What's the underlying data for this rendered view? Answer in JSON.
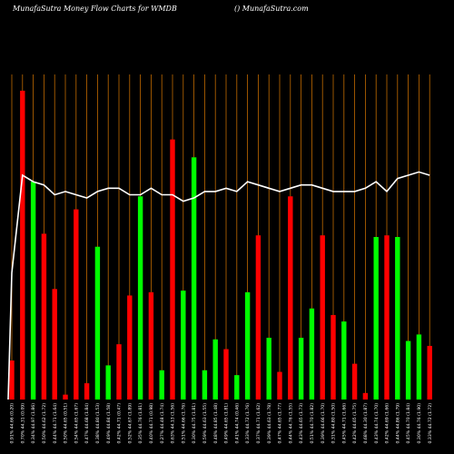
{
  "header": {
    "left": "MunafaSutra  Money Flow  Charts for WMDB",
    "right": "() MunafaSutra.com"
  },
  "colors": {
    "background": "#000000",
    "positive": "#00ff00",
    "negative": "#ff0000",
    "grid": "#c06a00",
    "line": "#ffffff"
  },
  "chart_data": {
    "type": "bar",
    "ylim": [
      0,
      100
    ],
    "bars": [
      {
        "label": "0.91% 44.66 (0.20)",
        "value": 12,
        "dir": "down"
      },
      {
        "label": "0.70% 44.31 (0.09)",
        "value": 95,
        "dir": "down"
      },
      {
        "label": "0.34% 44.97 (1.86)",
        "value": 67,
        "dir": "up"
      },
      {
        "label": "0.50% 44.62 (1.72)",
        "value": 51,
        "dir": "down"
      },
      {
        "label": "0.44% 44.71 (1.64)",
        "value": 34,
        "dir": "down"
      },
      {
        "label": "0.50% 44.65 (0.51)",
        "value": 1.5,
        "dir": "down"
      },
      {
        "label": "0.54% 44.65 (1.67)",
        "value": 58.5,
        "dir": "down"
      },
      {
        "label": "0.47% 44.68 (1.84)",
        "value": 5,
        "dir": "down"
      },
      {
        "label": "0.38% 44.80 (1.53)",
        "value": 47,
        "dir": "up"
      },
      {
        "label": "0.49% 44.84 (1.58)",
        "value": 10.5,
        "dir": "up"
      },
      {
        "label": "0.42% 44.71 (0.47)",
        "value": 17,
        "dir": "down"
      },
      {
        "label": "0.52% 44.67 (1.89)",
        "value": 32,
        "dir": "down"
      },
      {
        "label": "0.35% 44.76 (1.81)",
        "value": 62.5,
        "dir": "up"
      },
      {
        "label": "0.40% 44.71 (0.98)",
        "value": 33,
        "dir": "down"
      },
      {
        "label": "0.27% 44.48 (1.74)",
        "value": 9,
        "dir": "up"
      },
      {
        "label": "0.63% 44.13 (1.56)",
        "value": 80,
        "dir": "down"
      },
      {
        "label": "0.51% 44.66 (1.76)",
        "value": 33.5,
        "dir": "up"
      },
      {
        "label": "0.30% 44.75 (1.81)",
        "value": 74.5,
        "dir": "up"
      },
      {
        "label": "0.59% 44.63 (1.55)",
        "value": 9,
        "dir": "up"
      },
      {
        "label": "0.48% 44.85 (1.48)",
        "value": 18.5,
        "dir": "up"
      },
      {
        "label": "0.49% 44.65 (1.81)",
        "value": 15.5,
        "dir": "down"
      },
      {
        "label": "0.41% 44.74 (0.46)",
        "value": 7.5,
        "dir": "up"
      },
      {
        "label": "0.33% 44.72 (1.76)",
        "value": 33,
        "dir": "up"
      },
      {
        "label": "0.37% 44.71 (1.62)",
        "value": 50.5,
        "dir": "down"
      },
      {
        "label": "0.39% 44.63 (1.78)",
        "value": 19,
        "dir": "up"
      },
      {
        "label": "0.47% 44.65 (1.77)",
        "value": 8.5,
        "dir": "down"
      },
      {
        "label": "0.44% 44.76 (1.55)",
        "value": 62.5,
        "dir": "down"
      },
      {
        "label": "0.43% 44.65 (1.73)",
        "value": 19,
        "dir": "up"
      },
      {
        "label": "0.51% 44.70 (1.82)",
        "value": 28,
        "dir": "up"
      },
      {
        "label": "0.39% 44.66 (1.70)",
        "value": 50.5,
        "dir": "down"
      },
      {
        "label": "0.31% 44.80 (1.50)",
        "value": 26,
        "dir": "down"
      },
      {
        "label": "0.45% 44.71 (1.66)",
        "value": 24,
        "dir": "up"
      },
      {
        "label": "0.42% 44.65 (1.75)",
        "value": 11,
        "dir": "down"
      },
      {
        "label": "0.68% 44.30 (1.87)",
        "value": 2,
        "dir": "down"
      },
      {
        "label": "0.43% 44.74 (1.70)",
        "value": 50,
        "dir": "up"
      },
      {
        "label": "0.42% 44.69 (1.66)",
        "value": 50.5,
        "dir": "down"
      },
      {
        "label": "0.44% 44.86 (1.79)",
        "value": 50,
        "dir": "up"
      },
      {
        "label": "0.45% 44.70 (1.84)",
        "value": 18,
        "dir": "up"
      },
      {
        "label": "0.30% 44.76 (1.90)",
        "value": 20,
        "dir": "up"
      },
      {
        "label": "0.33% 44.72 (1.72)",
        "value": 16.5,
        "dir": "down"
      }
    ],
    "line": [
      39,
      69,
      67,
      66,
      63,
      64,
      63,
      62,
      64,
      65,
      65,
      63,
      63,
      65,
      63,
      63,
      61,
      62,
      64,
      64,
      65,
      64,
      67,
      66,
      65,
      64,
      65,
      66,
      66,
      65,
      64,
      64,
      64,
      65,
      67,
      64,
      68,
      69,
      70,
      69
    ]
  }
}
